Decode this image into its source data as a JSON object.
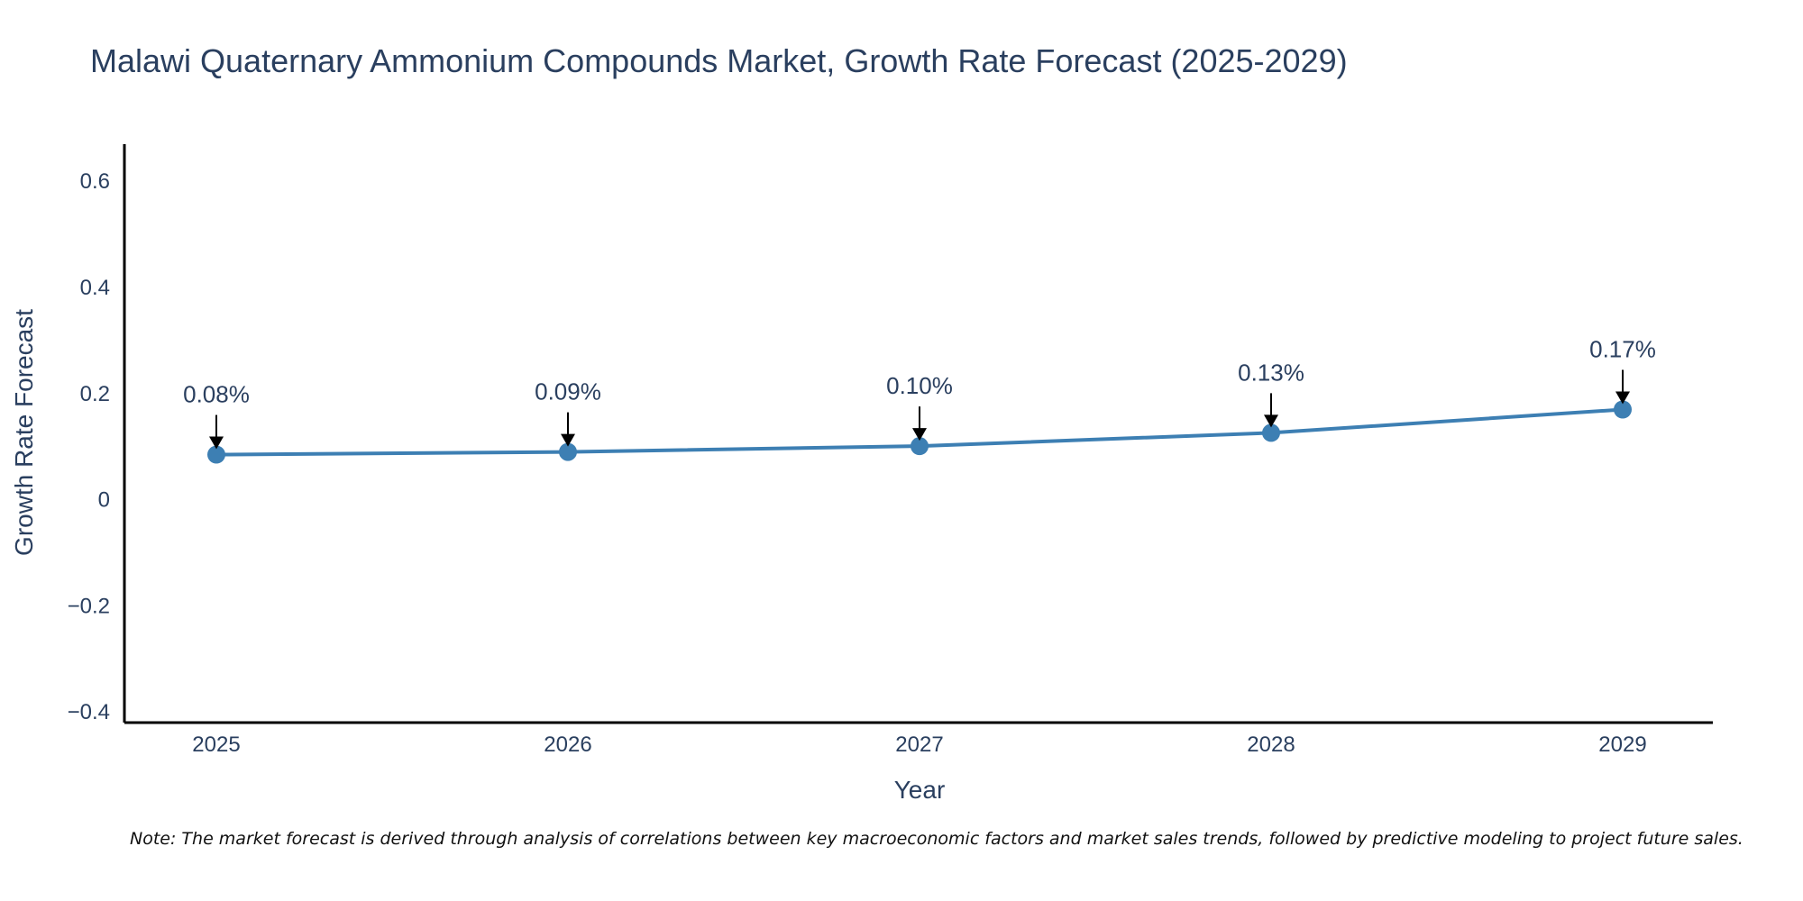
{
  "chart_data": {
    "type": "line",
    "title": "Malawi Quaternary Ammonium Compounds Market, Growth Rate Forecast (2025-2029)",
    "xlabel": "Year",
    "ylabel": "Growth Rate Forecast",
    "categories": [
      "2025",
      "2026",
      "2027",
      "2028",
      "2029"
    ],
    "series": [
      {
        "name": "Growth Rate Forecast",
        "values": [
          0.085,
          0.09,
          0.101,
          0.126,
          0.17
        ]
      }
    ],
    "data_labels": [
      "0.08%",
      "0.09%",
      "0.10%",
      "0.13%",
      "0.17%"
    ],
    "ylim": [
      -0.42,
      0.67
    ],
    "yticks": [
      0.6,
      0.4,
      0.2,
      0,
      -0.2,
      -0.4
    ],
    "ytick_labels": [
      "0.6",
      "0.4",
      "0.2",
      "0",
      "−0.2",
      "−0.4"
    ],
    "line_color": "#3d7fb3",
    "grid": false,
    "legend": "none"
  },
  "note": "Note: The market forecast is derived through analysis of correlations between key macroeconomic factors and market sales trends, followed by predictive modeling to project future sales."
}
